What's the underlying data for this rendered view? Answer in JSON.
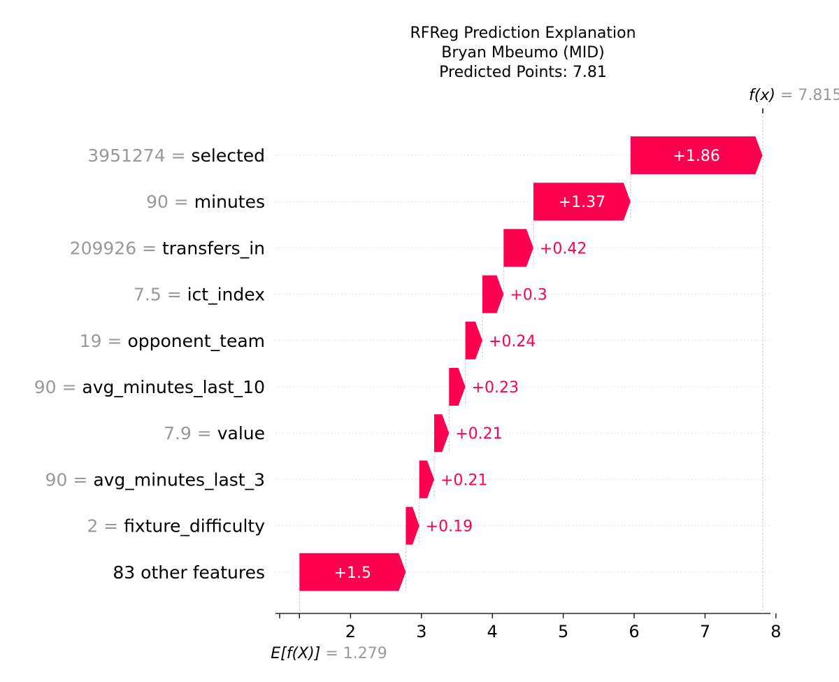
{
  "chart_data": {
    "type": "waterfall",
    "title_lines": [
      "RFReg Prediction Explanation",
      "Bryan Mbeumo (MID)",
      "Predicted Points: 7.81"
    ],
    "base_value": 1.279,
    "base_label": "E[f(X)]",
    "base_value_text": "= 1.279",
    "output_value": 7.815,
    "output_label": "f(x)",
    "output_value_text": "= 7.815",
    "xlim": [
      1.0,
      8.2
    ],
    "xticks": [
      1,
      2,
      3,
      4,
      5,
      6,
      7,
      8
    ],
    "xtick_labels": [
      "",
      "2",
      "3",
      "4",
      "5",
      "6",
      "7",
      "8"
    ],
    "positive_color": "#ff0051",
    "feature_value_color": "#999999",
    "features": [
      {
        "value": "3951274",
        "eq": "=",
        "name": "selected",
        "contribution": 1.86,
        "label": "+1.86"
      },
      {
        "value": "90",
        "eq": "=",
        "name": "minutes",
        "contribution": 1.37,
        "label": "+1.37"
      },
      {
        "value": "209926",
        "eq": "=",
        "name": "transfers_in",
        "contribution": 0.42,
        "label": "+0.42"
      },
      {
        "value": "7.5",
        "eq": "=",
        "name": "ict_index",
        "contribution": 0.3,
        "label": "+0.3"
      },
      {
        "value": "19",
        "eq": "=",
        "name": "opponent_team",
        "contribution": 0.24,
        "label": "+0.24"
      },
      {
        "value": "90",
        "eq": "=",
        "name": "avg_minutes_last_10",
        "contribution": 0.23,
        "label": "+0.23"
      },
      {
        "value": "7.9",
        "eq": "=",
        "name": "value",
        "contribution": 0.21,
        "label": "+0.21"
      },
      {
        "value": "90",
        "eq": "=",
        "name": "avg_minutes_last_3",
        "contribution": 0.21,
        "label": "+0.21"
      },
      {
        "value": "2",
        "eq": "=",
        "name": "fixture_difficulty",
        "contribution": 0.19,
        "label": "+0.19"
      },
      {
        "value": "",
        "eq": "",
        "name": "83 other features",
        "contribution": 1.5,
        "label": "+1.5"
      }
    ]
  }
}
